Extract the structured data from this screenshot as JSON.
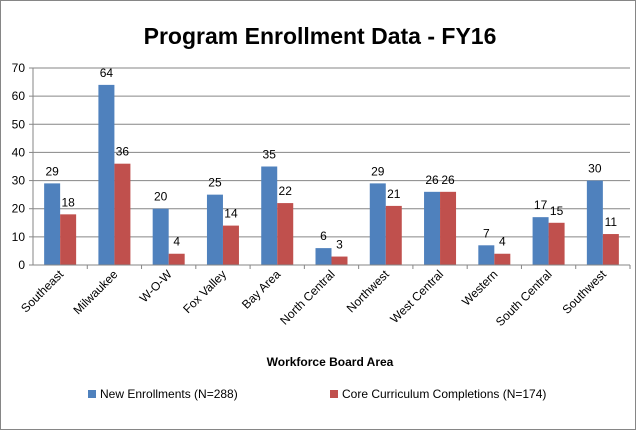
{
  "chart_data": {
    "type": "bar",
    "title": "Program Enrollment Data - FY16",
    "x_label": "Workforce Board Area",
    "categories": [
      "Southeast",
      "Milwaukee",
      "W-O-W",
      "Fox Valley",
      "Bay Area",
      "North Central",
      "Northwest",
      "West Central",
      "Western",
      "South Central",
      "Southwest"
    ],
    "series": [
      {
        "name": "New Enrollments (N=288)",
        "color": "#4f81bd",
        "values": [
          29,
          64,
          20,
          25,
          35,
          6,
          29,
          26,
          7,
          17,
          30
        ]
      },
      {
        "name": "Core Curriculum Completions (N=174)",
        "color": "#c0504d",
        "values": [
          18,
          36,
          4,
          14,
          22,
          3,
          21,
          26,
          4,
          15,
          11
        ]
      }
    ],
    "ylim": [
      0,
      70
    ],
    "yticks": [
      0,
      10,
      20,
      30,
      40,
      50,
      60,
      70
    ],
    "grid": true,
    "legend": "bottom"
  }
}
